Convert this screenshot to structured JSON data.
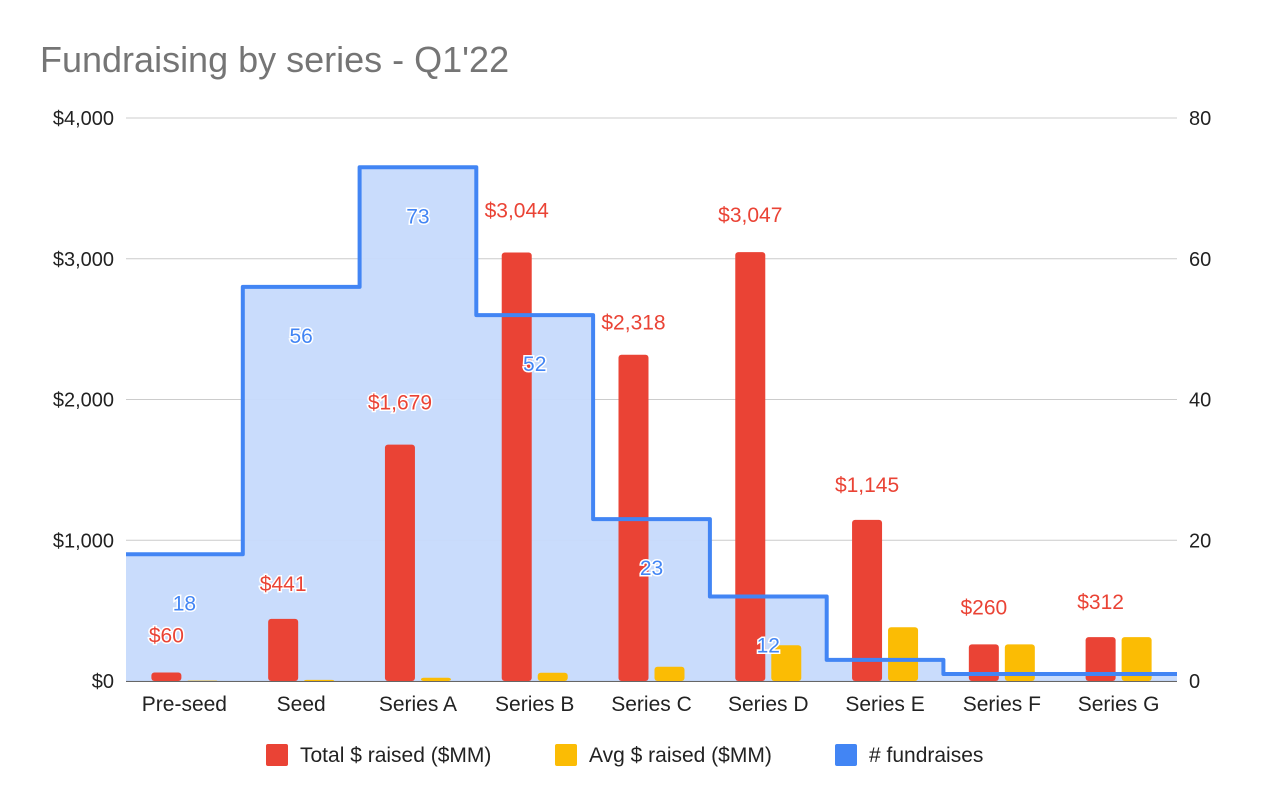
{
  "chart_data": {
    "type": "bar",
    "title": "Fundraising by series - Q1'22",
    "categories": [
      "Pre-seed",
      "Seed",
      "Series A",
      "Series B",
      "Series C",
      "Series D",
      "Series E",
      "Series F",
      "Series G"
    ],
    "series": [
      {
        "name": "Total $ raised ($MM)",
        "kind": "bar",
        "axis": "left",
        "color": "#ea4335",
        "values": [
          60,
          441,
          1679,
          3044,
          2318,
          3047,
          1145,
          260,
          312
        ],
        "labels": [
          "$60",
          "$441",
          "$1,679",
          "$3,044",
          "$2,318",
          "$3,047",
          "$1,145",
          "$260",
          "$312"
        ]
      },
      {
        "name": "Avg $ raised ($MM)",
        "kind": "bar",
        "axis": "left",
        "color": "#fbbc04",
        "values": [
          3,
          8,
          23,
          59,
          101,
          254,
          382,
          260,
          312
        ]
      },
      {
        "name": "# fundraises",
        "kind": "stepped-area",
        "axis": "right",
        "color": "#4285f4",
        "fill": "#c6dafc",
        "values": [
          18,
          56,
          73,
          52,
          23,
          12,
          3,
          1,
          1
        ],
        "labels": [
          "18",
          "56",
          "73",
          "52",
          "23",
          "12",
          "",
          "",
          ""
        ]
      }
    ],
    "y_left": {
      "ylim": [
        0,
        4000
      ],
      "ticks": [
        0,
        1000,
        2000,
        3000,
        4000
      ],
      "tick_labels": [
        "$0",
        "$1,000",
        "$2,000",
        "$3,000",
        "$4,000"
      ]
    },
    "y_right": {
      "ylim": [
        0,
        80
      ],
      "ticks": [
        0,
        20,
        40,
        60,
        80
      ],
      "tick_labels": [
        "0",
        "20",
        "40",
        "60",
        "80"
      ]
    },
    "grid": true,
    "legend": "bottom"
  }
}
